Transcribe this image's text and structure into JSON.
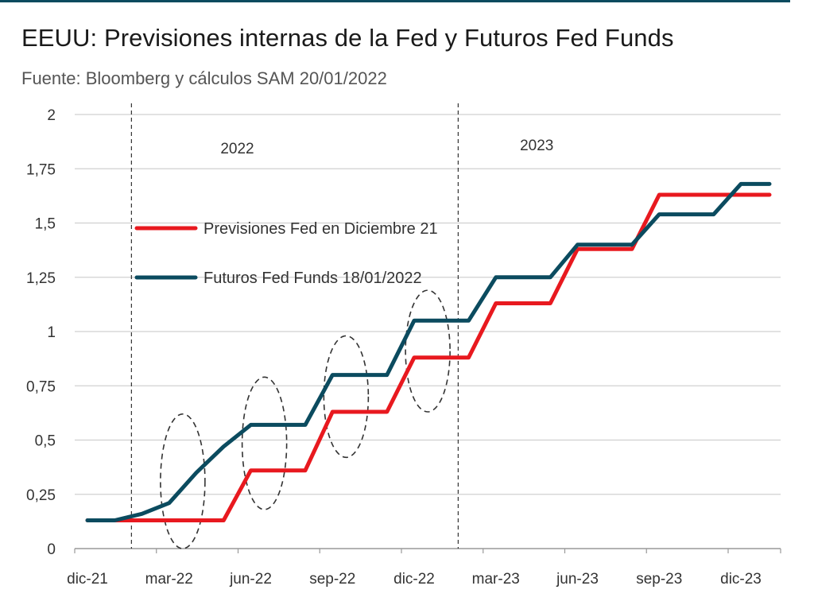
{
  "title": "EEUU: Previsiones internas de la Fed y Futuros Fed Funds",
  "subtitle": "Fuente: Bloomberg y cálculos SAM 20/01/2022",
  "colors": {
    "fed": "#e8191f",
    "futures": "#0b4b5f",
    "grid": "#d0d0d0",
    "rule": "#0b4b5f"
  },
  "chart_data": {
    "type": "line",
    "title": "EEUU: Previsiones internas de la Fed y Futuros Fed Funds",
    "subtitle": "Fuente: Bloomberg y cálculos SAM 20/01/2022",
    "xlabel": "",
    "ylabel": "",
    "x_ticks": [
      "dic-21",
      "mar-22",
      "jun-22",
      "sep-22",
      "dic-22",
      "mar-23",
      "jun-23",
      "sep-23",
      "dic-23"
    ],
    "y_ticks": [
      "0",
      "0,25",
      "0,5",
      "0,75",
      "1",
      "1,25",
      "1,5",
      "1,75",
      "2"
    ],
    "y_tick_values": [
      0,
      0.25,
      0.5,
      0.75,
      1,
      1.25,
      1.5,
      1.75,
      2
    ],
    "ylim": [
      0,
      2
    ],
    "grid": true,
    "legend_position": "left",
    "period_labels": [
      {
        "text": "2022",
        "x": "feb-22"
      },
      {
        "text": "2023",
        "x": "ene-23"
      }
    ],
    "series": [
      {
        "name": "Previsiones Fed  en Diciembre 21",
        "color": "#e8191f",
        "points": [
          [
            "dic-21",
            0.13
          ],
          [
            "ene-22",
            0.13
          ],
          [
            "feb-22",
            0.13
          ],
          [
            "mar-22",
            0.13
          ],
          [
            "abr-22",
            0.13
          ],
          [
            "may-22",
            0.13
          ],
          [
            "jun-22",
            0.36
          ],
          [
            "jul-22",
            0.36
          ],
          [
            "ago-22",
            0.36
          ],
          [
            "sep-22",
            0.63
          ],
          [
            "oct-22",
            0.63
          ],
          [
            "nov-22",
            0.63
          ],
          [
            "dic-22",
            0.88
          ],
          [
            "ene-23",
            0.88
          ],
          [
            "feb-23",
            0.88
          ],
          [
            "mar-23",
            1.13
          ],
          [
            "abr-23",
            1.13
          ],
          [
            "may-23",
            1.13
          ],
          [
            "jun-23",
            1.38
          ],
          [
            "jul-23",
            1.38
          ],
          [
            "ago-23",
            1.38
          ],
          [
            "sep-23",
            1.63
          ],
          [
            "oct-23",
            1.63
          ],
          [
            "nov-23",
            1.63
          ],
          [
            "dic-23",
            1.63
          ],
          [
            "ene-24",
            1.63
          ]
        ]
      },
      {
        "name": "Futuros Fed Funds 18/01/2022",
        "color": "#0b4b5f",
        "points": [
          [
            "dic-21",
            0.13
          ],
          [
            "ene-22",
            0.13
          ],
          [
            "feb-22",
            0.16
          ],
          [
            "mar-22",
            0.21
          ],
          [
            "abr-22",
            0.35
          ],
          [
            "may-22",
            0.47
          ],
          [
            "jun-22",
            0.57
          ],
          [
            "jul-22",
            0.57
          ],
          [
            "ago-22",
            0.57
          ],
          [
            "sep-22",
            0.8
          ],
          [
            "oct-22",
            0.8
          ],
          [
            "nov-22",
            0.8
          ],
          [
            "dic-22",
            1.05
          ],
          [
            "ene-23",
            1.05
          ],
          [
            "feb-23",
            1.05
          ],
          [
            "mar-23",
            1.25
          ],
          [
            "abr-23",
            1.25
          ],
          [
            "may-23",
            1.25
          ],
          [
            "jun-23",
            1.4
          ],
          [
            "jul-23",
            1.4
          ],
          [
            "ago-23",
            1.4
          ],
          [
            "sep-23",
            1.54
          ],
          [
            "oct-23",
            1.54
          ],
          [
            "nov-23",
            1.54
          ],
          [
            "dic-23",
            1.68
          ],
          [
            "ene-24",
            1.68
          ]
        ]
      }
    ],
    "annotations": [
      {
        "type": "ellipse",
        "x": "mar-22",
        "y_range": [
          0,
          0.62
        ]
      },
      {
        "type": "ellipse",
        "x": "jun-22",
        "y_range": [
          0.18,
          0.79
        ]
      },
      {
        "type": "ellipse",
        "x": "sep-22",
        "y_range": [
          0.42,
          0.98
        ]
      },
      {
        "type": "ellipse",
        "x": "dic-22",
        "y_range": [
          0.63,
          1.19
        ]
      }
    ]
  }
}
